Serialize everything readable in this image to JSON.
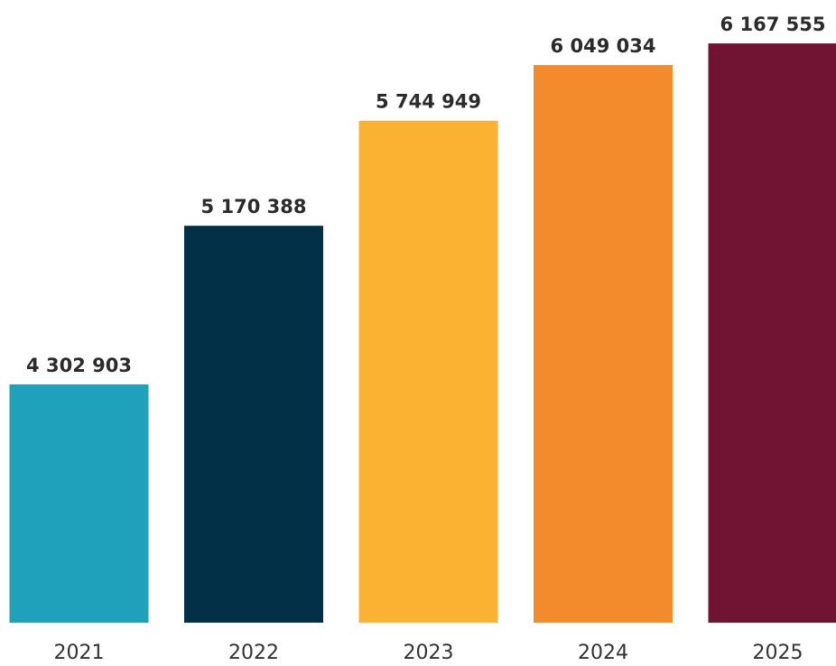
{
  "chart_data": {
    "type": "bar",
    "categories": [
      "2021",
      "2022",
      "2023",
      "2024",
      "2025"
    ],
    "values": [
      4302903,
      5170388,
      5744949,
      6049034,
      6167555
    ],
    "value_labels": [
      "4 302 903",
      "5 170 388",
      "5 744 949",
      "6 049 034",
      "6 167 555"
    ],
    "colors": [
      "#1fa0bb",
      "#023047",
      "#fbb131",
      "#f38a2b",
      "#711434"
    ],
    "ylim": [
      3000000,
      6400000
    ]
  }
}
